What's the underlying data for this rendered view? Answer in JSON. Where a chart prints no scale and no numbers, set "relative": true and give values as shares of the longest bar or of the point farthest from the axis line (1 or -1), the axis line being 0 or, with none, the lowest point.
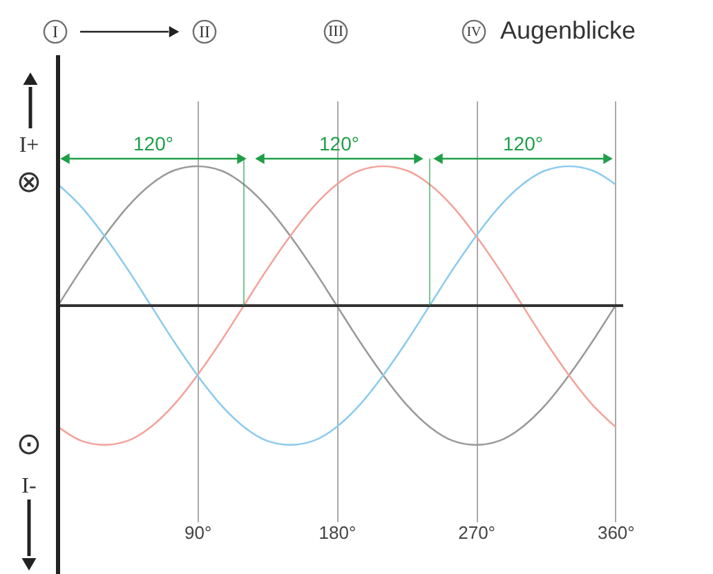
{
  "chart_data": {
    "type": "line",
    "relative": true,
    "x": [
      0,
      15,
      30,
      45,
      60,
      75,
      90,
      105,
      120,
      135,
      150,
      165,
      180,
      195,
      210,
      225,
      240,
      255,
      270,
      285,
      300,
      315,
      330,
      345,
      360
    ],
    "xlim": [
      0,
      365
    ],
    "xticks": [
      {
        "value": 90,
        "label": "90°"
      },
      {
        "value": 180,
        "label": "180°"
      },
      {
        "value": 270,
        "label": "270°"
      },
      {
        "value": 360,
        "label": "360°"
      }
    ],
    "series": [
      {
        "color": "#9a9a9a",
        "values": [
          0,
          0.26,
          0.5,
          0.71,
          0.87,
          0.97,
          1,
          0.97,
          0.87,
          0.71,
          0.5,
          0.26,
          0,
          -0.26,
          -0.5,
          -0.71,
          -0.87,
          -0.97,
          -1,
          -0.97,
          -0.87,
          -0.71,
          -0.5,
          -0.26,
          0
        ]
      },
      {
        "color": "#f2a39c",
        "values": [
          -0.87,
          -0.97,
          -1,
          -0.97,
          -0.87,
          -0.71,
          -0.5,
          -0.26,
          0,
          0.26,
          0.5,
          0.71,
          0.87,
          0.97,
          1,
          0.97,
          0.87,
          0.71,
          0.5,
          0.26,
          0,
          -0.26,
          -0.5,
          -0.71,
          -0.87
        ]
      },
      {
        "color": "#8ccbee",
        "values": [
          0.87,
          0.71,
          0.5,
          0.26,
          0,
          -0.26,
          -0.5,
          -0.71,
          -0.87,
          -0.97,
          -1,
          -0.97,
          -0.87,
          -0.71,
          -0.5,
          -0.26,
          0,
          0.26,
          0.5,
          0.71,
          0.87,
          0.97,
          1,
          0.97,
          0.87
        ]
      }
    ],
    "ref_lines": [
      {
        "axis": "x",
        "value": 120,
        "color": "#1f9e48"
      },
      {
        "axis": "x",
        "value": 240,
        "color": "#1f9e48"
      }
    ],
    "annotations": [
      "I",
      "II",
      "III",
      "IV",
      "Augenblicke",
      "I+",
      "I-",
      "⊗",
      "⊙",
      "120°",
      "120°",
      "120°"
    ],
    "grid": "x",
    "tick_labels": "x"
  }
}
